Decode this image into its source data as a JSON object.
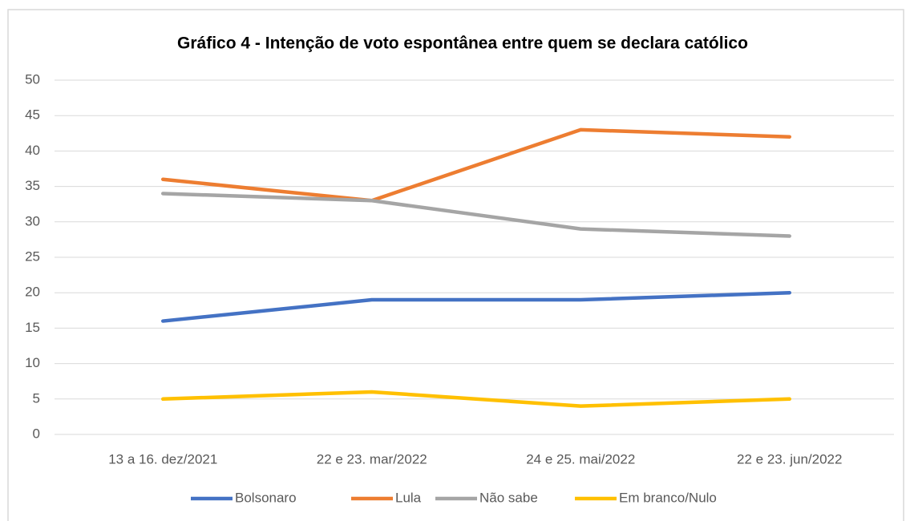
{
  "chart_data": {
    "type": "line",
    "title": "Gráfico 4 - Intenção de voto espontânea entre quem se declara católico",
    "categories": [
      "13 a 16. dez/2021",
      "22 e 23. mar/2022",
      "24 e 25. mai/2022",
      "22 e 23. jun/2022"
    ],
    "series": [
      {
        "name": "Bolsonaro",
        "color": "#4472c4",
        "values": [
          16,
          19,
          19,
          20
        ]
      },
      {
        "name": "Lula",
        "color": "#ed7d31",
        "values": [
          36,
          33,
          43,
          42
        ]
      },
      {
        "name": "Não sabe",
        "color": "#a5a5a5",
        "values": [
          34,
          33,
          29,
          28
        ]
      },
      {
        "name": "Em branco/Nulo",
        "color": "#ffc000",
        "values": [
          5,
          6,
          4,
          5
        ]
      }
    ],
    "ylim": [
      0,
      50
    ],
    "yticks": [
      0,
      5,
      10,
      15,
      20,
      25,
      30,
      35,
      40,
      45,
      50
    ],
    "grid": true,
    "legend": "bottom"
  }
}
